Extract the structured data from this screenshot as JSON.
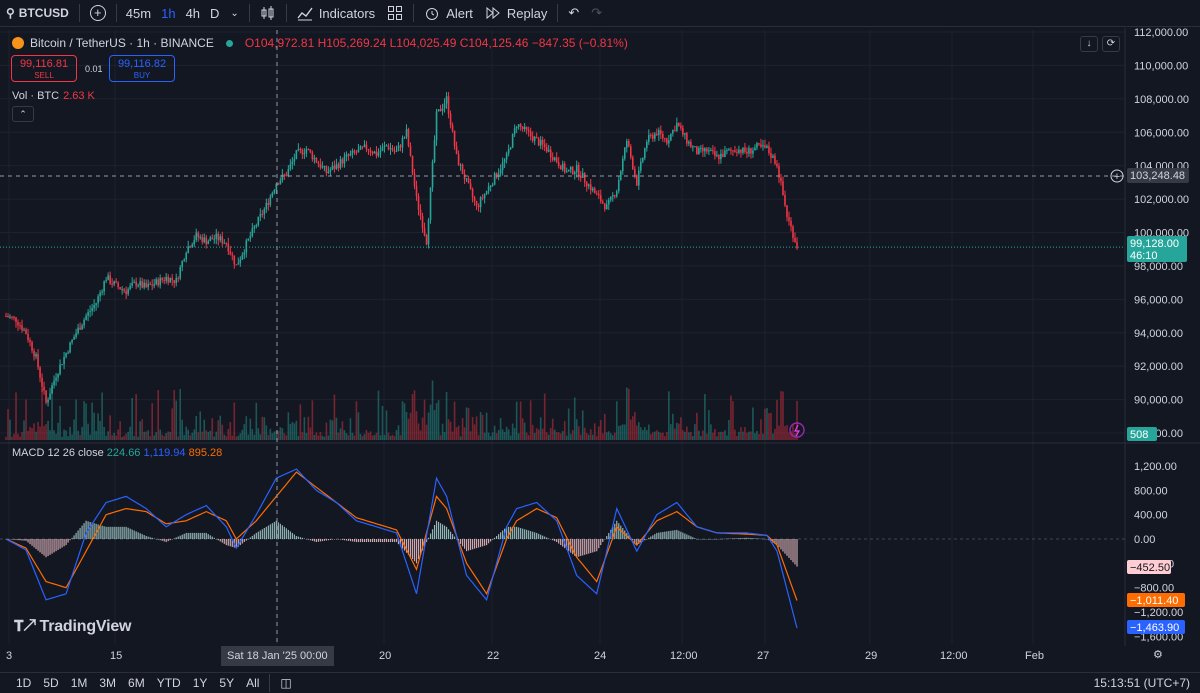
{
  "toolbar": {
    "symbol": "BTCUSD",
    "intervals": [
      "45m",
      "1h",
      "4h",
      "D"
    ],
    "active_interval": "1h",
    "indicators_label": "Indicators",
    "alert_label": "Alert",
    "replay_label": "Replay"
  },
  "legend": {
    "title": "Bitcoin / TetherUS · 1h · BINANCE",
    "ohlc": "O104,972.81 H105,269.24 L104,025.49 C104,125.46 −847.35 (−0.81%)",
    "sell_price": "99,116.81",
    "sell_label": "SELL",
    "spread": "0.01",
    "buy_price": "99,116.82",
    "buy_label": "BUY",
    "vol_label": "Vol · BTC",
    "vol_value": "2.63 K"
  },
  "macd_legend": {
    "label": "MACD 12 26 close",
    "hist": "224.66",
    "macd": "1,119.94",
    "signal": "895.28"
  },
  "price_axis": {
    "ticks": [
      "112,000.00",
      "110,000.00",
      "108,000.00",
      "106,000.00",
      "104,000.00",
      "102,000.00",
      "100,000.00",
      "98,000.00",
      "96,000.00",
      "94,000.00",
      "92,000.00",
      "90,000.00",
      "88,000.00"
    ],
    "crosshair_price": "103,248.48",
    "last_price": "99,128.00",
    "countdown": "46:10",
    "volume_badge": "508"
  },
  "macd_axis": {
    "ticks": [
      "1,200.00",
      "800.00",
      "400.00",
      "0.00",
      "−400.00",
      "−800.00",
      "−1,200.00",
      "−1,600.00"
    ],
    "hist_badge": "−452.50",
    "signal_badge": "−1,011.40",
    "macd_badge": "−1,463.90"
  },
  "time_axis": {
    "labels": [
      "3",
      "15",
      "20",
      "22",
      "24",
      "12:00",
      "27",
      "29",
      "12:00",
      "Feb"
    ],
    "crosshair_time": "Sat 18 Jan '25   00:00"
  },
  "ranges": [
    "1D",
    "5D",
    "1M",
    "3M",
    "6M",
    "YTD",
    "1Y",
    "5Y",
    "All"
  ],
  "clock": "15:13:51 (UTC+7)",
  "brand": "TradingView",
  "colors": {
    "up": "#26a69a",
    "down": "#f23645",
    "macd": "#2962ff",
    "signal": "#ff6d00",
    "bg": "#131722"
  },
  "chart_data": {
    "type": "candlestick",
    "title": "Bitcoin / TetherUS · 1h · BINANCE",
    "ylim": [
      87500,
      112500
    ],
    "close_path": [
      [
        0,
        95000
      ],
      [
        5,
        94800
      ],
      [
        10,
        94000
      ],
      [
        15,
        92500
      ],
      [
        20,
        89800
      ],
      [
        25,
        91500
      ],
      [
        30,
        92800
      ],
      [
        35,
        94000
      ],
      [
        40,
        95000
      ],
      [
        45,
        95800
      ],
      [
        50,
        97300
      ],
      [
        55,
        96800
      ],
      [
        60,
        96500
      ],
      [
        65,
        97000
      ],
      [
        70,
        96700
      ],
      [
        75,
        97000
      ],
      [
        80,
        97300
      ],
      [
        85,
        97100
      ],
      [
        90,
        99000
      ],
      [
        95,
        99800
      ],
      [
        100,
        99500
      ],
      [
        105,
        99700
      ],
      [
        110,
        99400
      ],
      [
        115,
        98000
      ],
      [
        120,
        99300
      ],
      [
        125,
        100500
      ],
      [
        130,
        101600
      ],
      [
        135,
        103000
      ],
      [
        140,
        103500
      ],
      [
        145,
        104700
      ],
      [
        150,
        105000
      ],
      [
        155,
        104300
      ],
      [
        160,
        103600
      ],
      [
        165,
        104000
      ],
      [
        170,
        104500
      ],
      [
        175,
        104800
      ],
      [
        180,
        105100
      ],
      [
        185,
        104700
      ],
      [
        190,
        105200
      ],
      [
        195,
        104800
      ],
      [
        200,
        106000
      ],
      [
        205,
        102000
      ],
      [
        210,
        99500
      ],
      [
        215,
        107000
      ],
      [
        220,
        108000
      ],
      [
        225,
        104500
      ],
      [
        230,
        103000
      ],
      [
        235,
        101500
      ],
      [
        240,
        102500
      ],
      [
        245,
        103500
      ],
      [
        250,
        104500
      ],
      [
        255,
        106500
      ],
      [
        260,
        106000
      ],
      [
        265,
        105500
      ],
      [
        270,
        105000
      ],
      [
        275,
        104300
      ],
      [
        280,
        103600
      ],
      [
        285,
        103800
      ],
      [
        290,
        103000
      ],
      [
        295,
        102200
      ],
      [
        300,
        101500
      ],
      [
        305,
        102600
      ],
      [
        310,
        105500
      ],
      [
        315,
        103000
      ],
      [
        320,
        105500
      ],
      [
        325,
        106000
      ],
      [
        330,
        105500
      ],
      [
        335,
        106500
      ],
      [
        340,
        105500
      ],
      [
        345,
        104800
      ],
      [
        350,
        104900
      ],
      [
        355,
        104500
      ],
      [
        360,
        104800
      ],
      [
        365,
        105000
      ],
      [
        370,
        104800
      ],
      [
        375,
        105100
      ],
      [
        380,
        105000
      ],
      [
        385,
        104100
      ],
      [
        390,
        101000
      ],
      [
        395,
        99200
      ]
    ],
    "macd_line": [
      [
        0,
        0
      ],
      [
        10,
        -180
      ],
      [
        20,
        -1000
      ],
      [
        30,
        -900
      ],
      [
        40,
        100
      ],
      [
        50,
        600
      ],
      [
        60,
        700
      ],
      [
        70,
        500
      ],
      [
        80,
        200
      ],
      [
        90,
        400
      ],
      [
        100,
        550
      ],
      [
        110,
        200
      ],
      [
        115,
        -150
      ],
      [
        125,
        400
      ],
      [
        135,
        1000
      ],
      [
        145,
        1150
      ],
      [
        155,
        800
      ],
      [
        165,
        600
      ],
      [
        175,
        300
      ],
      [
        185,
        200
      ],
      [
        195,
        100
      ],
      [
        205,
        -900
      ],
      [
        215,
        1000
      ],
      [
        220,
        700
      ],
      [
        230,
        -600
      ],
      [
        240,
        -1000
      ],
      [
        250,
        200
      ],
      [
        255,
        500
      ],
      [
        265,
        600
      ],
      [
        275,
        300
      ],
      [
        285,
        -600
      ],
      [
        295,
        -900
      ],
      [
        305,
        500
      ],
      [
        315,
        -200
      ],
      [
        325,
        400
      ],
      [
        335,
        600
      ],
      [
        345,
        200
      ],
      [
        355,
        100
      ],
      [
        370,
        100
      ],
      [
        380,
        60
      ],
      [
        385,
        -200
      ],
      [
        395,
        -1463.9
      ]
    ],
    "signal_line": [
      [
        0,
        0
      ],
      [
        10,
        -150
      ],
      [
        20,
        -700
      ],
      [
        30,
        -800
      ],
      [
        40,
        -200
      ],
      [
        50,
        400
      ],
      [
        60,
        500
      ],
      [
        70,
        450
      ],
      [
        80,
        250
      ],
      [
        90,
        300
      ],
      [
        100,
        450
      ],
      [
        110,
        300
      ],
      [
        115,
        0
      ],
      [
        125,
        300
      ],
      [
        135,
        700
      ],
      [
        145,
        1100
      ],
      [
        155,
        850
      ],
      [
        165,
        600
      ],
      [
        175,
        350
      ],
      [
        185,
        250
      ],
      [
        195,
        150
      ],
      [
        205,
        -500
      ],
      [
        215,
        700
      ],
      [
        220,
        500
      ],
      [
        230,
        -400
      ],
      [
        240,
        -900
      ],
      [
        250,
        0
      ],
      [
        255,
        300
      ],
      [
        265,
        500
      ],
      [
        275,
        350
      ],
      [
        285,
        -300
      ],
      [
        295,
        -700
      ],
      [
        305,
        200
      ],
      [
        315,
        -100
      ],
      [
        325,
        300
      ],
      [
        335,
        450
      ],
      [
        345,
        200
      ],
      [
        355,
        100
      ],
      [
        370,
        80
      ],
      [
        380,
        60
      ],
      [
        385,
        -100
      ],
      [
        395,
        -1011.4
      ]
    ]
  }
}
